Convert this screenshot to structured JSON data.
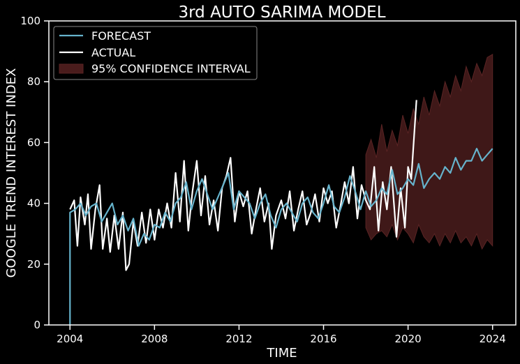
{
  "chart_data": {
    "type": "line",
    "title": "3rd AUTO SARIMA MODEL",
    "xlabel": "TIME",
    "ylabel": "GOOGLE TREND INTEREST INDEX",
    "xlim": [
      2003.0,
      2025.1
    ],
    "ylim": [
      0,
      100
    ],
    "x_ticks": [
      {
        "value": 2004,
        "label": "2004"
      },
      {
        "value": 2008,
        "label": "2008"
      },
      {
        "value": 2012,
        "label": "2012"
      },
      {
        "value": 2016,
        "label": "2016"
      },
      {
        "value": 2020,
        "label": "2020"
      },
      {
        "value": 2024,
        "label": "2024"
      }
    ],
    "y_ticks": [
      {
        "value": 0,
        "label": "0"
      },
      {
        "value": 20,
        "label": "20"
      },
      {
        "value": 40,
        "label": "40"
      },
      {
        "value": 60,
        "label": "60"
      },
      {
        "value": 80,
        "label": "80"
      },
      {
        "value": 100,
        "label": "100"
      }
    ],
    "legend_position": "top-left",
    "legend": [
      {
        "label": "FORECAST",
        "kind": "line",
        "color": "#66b3cc"
      },
      {
        "label": "ACTUAL",
        "kind": "line",
        "color": "#ffffff"
      },
      {
        "label": "95% CONFIDENCE INTERVAL",
        "kind": "patch",
        "color": "#4a1c1c"
      }
    ],
    "colors": {
      "forecast": "#66b3cc",
      "actual": "#ffffff",
      "ci_fill": "#4a1c1c",
      "background": "#000000",
      "axes": "#ffffff"
    },
    "series": [
      {
        "name": "FORECAST",
        "points": [
          [
            2004.0,
            0
          ],
          [
            2004.0,
            37
          ],
          [
            2004.25,
            38
          ],
          [
            2004.5,
            40
          ],
          [
            2004.75,
            36
          ],
          [
            2005.0,
            39
          ],
          [
            2005.25,
            40
          ],
          [
            2005.5,
            34
          ],
          [
            2005.75,
            37
          ],
          [
            2006.0,
            40
          ],
          [
            2006.25,
            33
          ],
          [
            2006.5,
            36
          ],
          [
            2006.75,
            31
          ],
          [
            2007.0,
            35
          ],
          [
            2007.25,
            26
          ],
          [
            2007.5,
            30
          ],
          [
            2007.75,
            28
          ],
          [
            2008.0,
            33
          ],
          [
            2008.25,
            32
          ],
          [
            2008.5,
            37
          ],
          [
            2008.75,
            34
          ],
          [
            2009.0,
            40
          ],
          [
            2009.25,
            42
          ],
          [
            2009.5,
            47
          ],
          [
            2009.75,
            38
          ],
          [
            2010.0,
            44
          ],
          [
            2010.25,
            48
          ],
          [
            2010.5,
            43
          ],
          [
            2010.75,
            38
          ],
          [
            2011.0,
            42
          ],
          [
            2011.25,
            46
          ],
          [
            2011.5,
            50
          ],
          [
            2011.75,
            38
          ],
          [
            2012.0,
            44
          ],
          [
            2012.25,
            42
          ],
          [
            2012.5,
            40
          ],
          [
            2012.75,
            35
          ],
          [
            2013.0,
            40
          ],
          [
            2013.25,
            43
          ],
          [
            2013.5,
            36
          ],
          [
            2013.75,
            32
          ],
          [
            2014.0,
            38
          ],
          [
            2014.25,
            40
          ],
          [
            2014.5,
            37
          ],
          [
            2014.75,
            34
          ],
          [
            2015.0,
            40
          ],
          [
            2015.25,
            42
          ],
          [
            2015.5,
            37
          ],
          [
            2015.75,
            35
          ],
          [
            2016.0,
            40
          ],
          [
            2016.25,
            46
          ],
          [
            2016.5,
            39
          ],
          [
            2016.75,
            37
          ],
          [
            2017.0,
            42
          ],
          [
            2017.25,
            49
          ],
          [
            2017.5,
            44
          ],
          [
            2017.75,
            38
          ],
          [
            2018.0,
            44
          ],
          [
            2018.25,
            39
          ],
          [
            2018.5,
            41
          ],
          [
            2018.75,
            45
          ],
          [
            2019.0,
            43
          ],
          [
            2019.25,
            51
          ],
          [
            2019.5,
            43
          ],
          [
            2019.75,
            45
          ],
          [
            2020.0,
            48
          ],
          [
            2020.25,
            46
          ],
          [
            2020.5,
            53
          ],
          [
            2020.75,
            45
          ],
          [
            2021.0,
            48
          ],
          [
            2021.25,
            50
          ],
          [
            2021.5,
            48
          ],
          [
            2021.75,
            52
          ],
          [
            2022.0,
            50
          ],
          [
            2022.25,
            55
          ],
          [
            2022.5,
            51
          ],
          [
            2022.75,
            54
          ],
          [
            2023.0,
            54
          ],
          [
            2023.25,
            58
          ],
          [
            2023.5,
            54
          ],
          [
            2023.75,
            56
          ],
          [
            2024.0,
            58
          ]
        ]
      },
      {
        "name": "ACTUAL",
        "points": [
          [
            2004.0,
            38
          ],
          [
            2004.2,
            41
          ],
          [
            2004.35,
            26
          ],
          [
            2004.5,
            42
          ],
          [
            2004.7,
            33
          ],
          [
            2004.85,
            43
          ],
          [
            2005.0,
            25
          ],
          [
            2005.2,
            38
          ],
          [
            2005.4,
            46
          ],
          [
            2005.55,
            25
          ],
          [
            2005.75,
            35
          ],
          [
            2005.9,
            24
          ],
          [
            2006.1,
            36
          ],
          [
            2006.3,
            25
          ],
          [
            2006.5,
            37
          ],
          [
            2006.65,
            18
          ],
          [
            2006.8,
            20
          ],
          [
            2007.0,
            34
          ],
          [
            2007.2,
            26
          ],
          [
            2007.4,
            37
          ],
          [
            2007.6,
            27
          ],
          [
            2007.8,
            38
          ],
          [
            2008.0,
            28
          ],
          [
            2008.2,
            38
          ],
          [
            2008.4,
            32
          ],
          [
            2008.6,
            40
          ],
          [
            2008.8,
            32
          ],
          [
            2009.0,
            50
          ],
          [
            2009.2,
            34
          ],
          [
            2009.4,
            54
          ],
          [
            2009.6,
            31
          ],
          [
            2009.8,
            44
          ],
          [
            2010.0,
            54
          ],
          [
            2010.2,
            36
          ],
          [
            2010.4,
            49
          ],
          [
            2010.6,
            33
          ],
          [
            2010.8,
            41
          ],
          [
            2011.0,
            31
          ],
          [
            2011.2,
            45
          ],
          [
            2011.4,
            49
          ],
          [
            2011.6,
            55
          ],
          [
            2011.8,
            34
          ],
          [
            2012.0,
            44
          ],
          [
            2012.2,
            39
          ],
          [
            2012.4,
            44
          ],
          [
            2012.6,
            30
          ],
          [
            2012.8,
            38
          ],
          [
            2013.0,
            45
          ],
          [
            2013.2,
            34
          ],
          [
            2013.4,
            40
          ],
          [
            2013.55,
            25
          ],
          [
            2013.75,
            36
          ],
          [
            2014.0,
            41
          ],
          [
            2014.2,
            35
          ],
          [
            2014.4,
            44
          ],
          [
            2014.6,
            31
          ],
          [
            2014.8,
            38
          ],
          [
            2015.0,
            44
          ],
          [
            2015.2,
            33
          ],
          [
            2015.4,
            37
          ],
          [
            2015.6,
            43
          ],
          [
            2015.8,
            34
          ],
          [
            2016.0,
            45
          ],
          [
            2016.2,
            40
          ],
          [
            2016.4,
            44
          ],
          [
            2016.6,
            32
          ],
          [
            2016.8,
            39
          ],
          [
            2017.0,
            47
          ],
          [
            2017.2,
            40
          ],
          [
            2017.4,
            52
          ],
          [
            2017.6,
            35
          ],
          [
            2017.8,
            46
          ],
          [
            2018.0,
            41
          ],
          [
            2018.2,
            38
          ],
          [
            2018.4,
            52
          ],
          [
            2018.6,
            31
          ],
          [
            2018.8,
            47
          ],
          [
            2019.0,
            38
          ],
          [
            2019.2,
            52
          ],
          [
            2019.45,
            29
          ],
          [
            2019.65,
            45
          ],
          [
            2019.85,
            32
          ],
          [
            2020.0,
            52
          ],
          [
            2020.15,
            48
          ],
          [
            2020.4,
            74
          ]
        ]
      }
    ],
    "confidence_interval": {
      "label": "95% CONFIDENCE INTERVAL",
      "x": [
        2018.0,
        2018.25,
        2018.5,
        2018.75,
        2019.0,
        2019.25,
        2019.5,
        2019.75,
        2020.0,
        2020.25,
        2020.5,
        2020.75,
        2021.0,
        2021.25,
        2021.5,
        2021.75,
        2022.0,
        2022.25,
        2022.5,
        2022.75,
        2023.0,
        2023.25,
        2023.5,
        2023.75,
        2024.0
      ],
      "upper": [
        56,
        61,
        55,
        66,
        57,
        64,
        59,
        69,
        63,
        71,
        66,
        75,
        69,
        77,
        72,
        80,
        75,
        82,
        77,
        85,
        80,
        86,
        82,
        88,
        89
      ],
      "lower": [
        32,
        28,
        30,
        31,
        29,
        33,
        28,
        32,
        30,
        27,
        33,
        29,
        27,
        30,
        26,
        30,
        27,
        31,
        27,
        29,
        26,
        30,
        25,
        28,
        26
      ]
    }
  }
}
